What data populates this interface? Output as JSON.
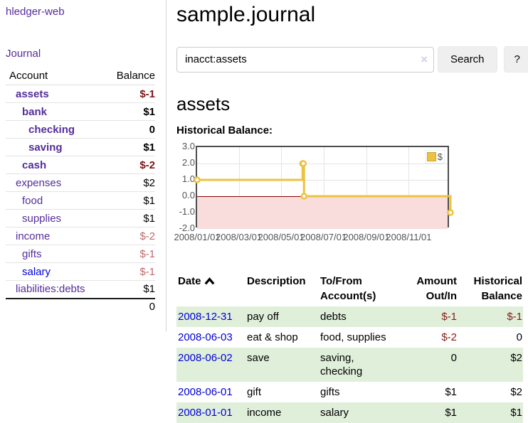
{
  "app_title": "hledger-web",
  "sidebar": {
    "journal_link": "Journal",
    "account_header": "Account",
    "balance_header": "Balance",
    "accounts": [
      {
        "name": "assets",
        "balance": "$-1",
        "depth": 1,
        "bold": true,
        "balance_tone": "neg-strong"
      },
      {
        "name": "bank",
        "balance": "$1",
        "depth": 2,
        "bold": true,
        "balance_tone": "pos"
      },
      {
        "name": "checking",
        "balance": "0",
        "depth": 3,
        "bold": true,
        "balance_tone": "pos"
      },
      {
        "name": "saving",
        "balance": "$1",
        "depth": 3,
        "bold": true,
        "balance_tone": "pos"
      },
      {
        "name": "cash",
        "balance": "$-2",
        "depth": 2,
        "bold": true,
        "balance_tone": "neg-strong"
      },
      {
        "name": "expenses",
        "balance": "$2",
        "depth": 1,
        "bold": false,
        "balance_tone": "pos"
      },
      {
        "name": "food",
        "balance": "$1",
        "depth": 2,
        "bold": false,
        "balance_tone": "pos"
      },
      {
        "name": "supplies",
        "balance": "$1",
        "depth": 2,
        "bold": false,
        "balance_tone": "pos"
      },
      {
        "name": "income",
        "balance": "$-2",
        "depth": 1,
        "bold": false,
        "balance_tone": "neg-soft"
      },
      {
        "name": "gifts",
        "balance": "$-1",
        "depth": 2,
        "bold": false,
        "balance_tone": "neg-soft"
      },
      {
        "name": "salary",
        "balance": "$-1",
        "depth": 2,
        "bold": false,
        "balance_tone": "neg-soft",
        "link_state": "unvisited"
      },
      {
        "name": "liabilities:debts",
        "balance": "$1",
        "depth": 1,
        "bold": false,
        "balance_tone": "pos"
      }
    ],
    "total": "0"
  },
  "header": {
    "title": "sample.journal"
  },
  "search": {
    "value": "inacct:assets",
    "clear_icon": "×",
    "search_button": "Search",
    "help_button": "?"
  },
  "account_view": {
    "heading": "assets",
    "chart_caption": "Historical Balance:"
  },
  "chart_data": {
    "type": "line",
    "title": "Historical Balance",
    "step": true,
    "series": [
      {
        "name": "$",
        "color": "#edc240",
        "points": [
          [
            "2008-01-01",
            1
          ],
          [
            "2008-06-01",
            2
          ],
          [
            "2008-06-02",
            2
          ],
          [
            "2008-06-03",
            0
          ],
          [
            "2008-12-31",
            -1
          ]
        ]
      }
    ],
    "x_range": [
      "2008-01-01",
      "2008-12-31"
    ],
    "ylim": [
      -2,
      3
    ],
    "y_ticks": [
      "3.0",
      "2.0",
      "1.0",
      "0.0",
      "-1.0",
      "-2.0"
    ],
    "x_ticks": [
      "2008/01/01",
      "2008/03/01",
      "2008/05/01",
      "2008/07/01",
      "2008/09/01",
      "2008/11/01"
    ],
    "grid": true,
    "legend": {
      "label": "$",
      "position": "top-right"
    },
    "negative_region_color": "#f9dcdc",
    "zero_line_color": "#8b0000"
  },
  "register": {
    "columns": [
      "Date",
      "Description",
      "To/From\nAccount(s)",
      "Amount\nOut/In",
      "Historical\nBalance"
    ],
    "sort": "date-ascending",
    "rows": [
      {
        "date": "2008-12-31",
        "description": "pay off",
        "accounts": "debts",
        "amount": "$-1",
        "amount_tone": "neg",
        "balance": "$-1",
        "balance_tone": "neg"
      },
      {
        "date": "2008-06-03",
        "description": "eat & shop",
        "accounts": "food, supplies",
        "amount": "$-2",
        "amount_tone": "neg",
        "balance": "0",
        "balance_tone": "pos"
      },
      {
        "date": "2008-06-02",
        "description": "save",
        "accounts": "saving,\nchecking",
        "amount": "0",
        "amount_tone": "pos",
        "balance": "$2",
        "balance_tone": "pos"
      },
      {
        "date": "2008-06-01",
        "description": "gift",
        "accounts": "gifts",
        "amount": "$1",
        "amount_tone": "pos",
        "balance": "$2",
        "balance_tone": "pos"
      },
      {
        "date": "2008-01-01",
        "description": "income",
        "accounts": "salary",
        "amount": "$1",
        "amount_tone": "pos",
        "balance": "$1",
        "balance_tone": "pos"
      }
    ]
  },
  "colors": {
    "link_purple": "#542d9b",
    "link_blue": "#0000e0",
    "negative_strong": "#7c1414",
    "negative_soft": "#c06a6a",
    "table_stripe_green": "#e0efda",
    "series_gold": "#edc240",
    "chart_negative_fill": "#f9dcdc",
    "chart_zero_line": "#8b0000"
  }
}
